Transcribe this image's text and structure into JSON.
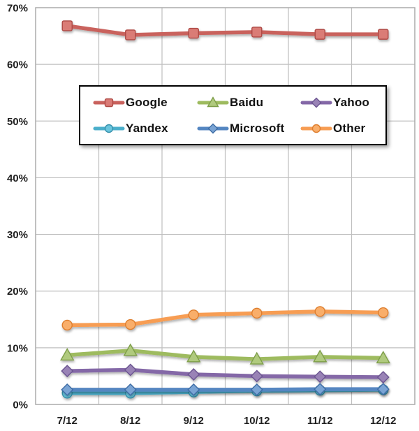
{
  "chart_data": {
    "type": "line",
    "title": "",
    "xlabel": "",
    "ylabel": "",
    "categories": [
      "7/12",
      "8/12",
      "9/12",
      "10/12",
      "11/12",
      "12/12"
    ],
    "series": [
      {
        "name": "Google",
        "marker": "square",
        "values": [
          66.8,
          65.2,
          65.5,
          65.7,
          65.3,
          65.3
        ],
        "line_color": "#C9625D",
        "marker_fill": "#DA7B76",
        "marker_stroke": "#AE4A45"
      },
      {
        "name": "Baidu",
        "marker": "triangle",
        "values": [
          8.7,
          9.5,
          8.4,
          8.0,
          8.4,
          8.2
        ],
        "line_color": "#9EBB5F",
        "marker_fill": "#B0CA7E",
        "marker_stroke": "#7E9E49"
      },
      {
        "name": "Yahoo",
        "marker": "diamond",
        "values": [
          5.9,
          6.1,
          5.3,
          5.0,
          4.9,
          4.8
        ],
        "line_color": "#8468A7",
        "marker_fill": "#9983B6",
        "marker_stroke": "#6B5490"
      },
      {
        "name": "Yandex",
        "marker": "circle",
        "values": [
          2.0,
          2.0,
          2.2,
          2.4,
          2.5,
          2.6
        ],
        "line_color": "#4BAFCB",
        "marker_fill": "#6BC6DE",
        "marker_stroke": "#3690AB"
      },
      {
        "name": "Microsoft",
        "marker": "diamond",
        "values": [
          2.6,
          2.6,
          2.6,
          2.6,
          2.7,
          2.7
        ],
        "line_color": "#5486C1",
        "marker_fill": "#7AA4D4",
        "marker_stroke": "#3E6CA5"
      },
      {
        "name": "Other",
        "marker": "circle",
        "values": [
          14.0,
          14.1,
          15.8,
          16.1,
          16.4,
          16.2
        ],
        "line_color": "#F79D53",
        "marker_fill": "#F9AE6B",
        "marker_stroke": "#DE7E2E"
      }
    ],
    "ylim": [
      0,
      70
    ],
    "yticks": {
      "values": [
        0,
        10,
        20,
        30,
        40,
        50,
        60,
        70
      ],
      "labels": [
        "0%",
        "10%",
        "20%",
        "30%",
        "40%",
        "50%",
        "60%",
        "70%"
      ]
    },
    "grid": true,
    "legend_position": "upper-center-box",
    "colors": {
      "gridline": "#BFBFBF",
      "plot_border": "#ABABAB",
      "axis_label": "#1F1F1F",
      "legend_border": "#000000",
      "legend_background": "#FFFFFF"
    }
  }
}
